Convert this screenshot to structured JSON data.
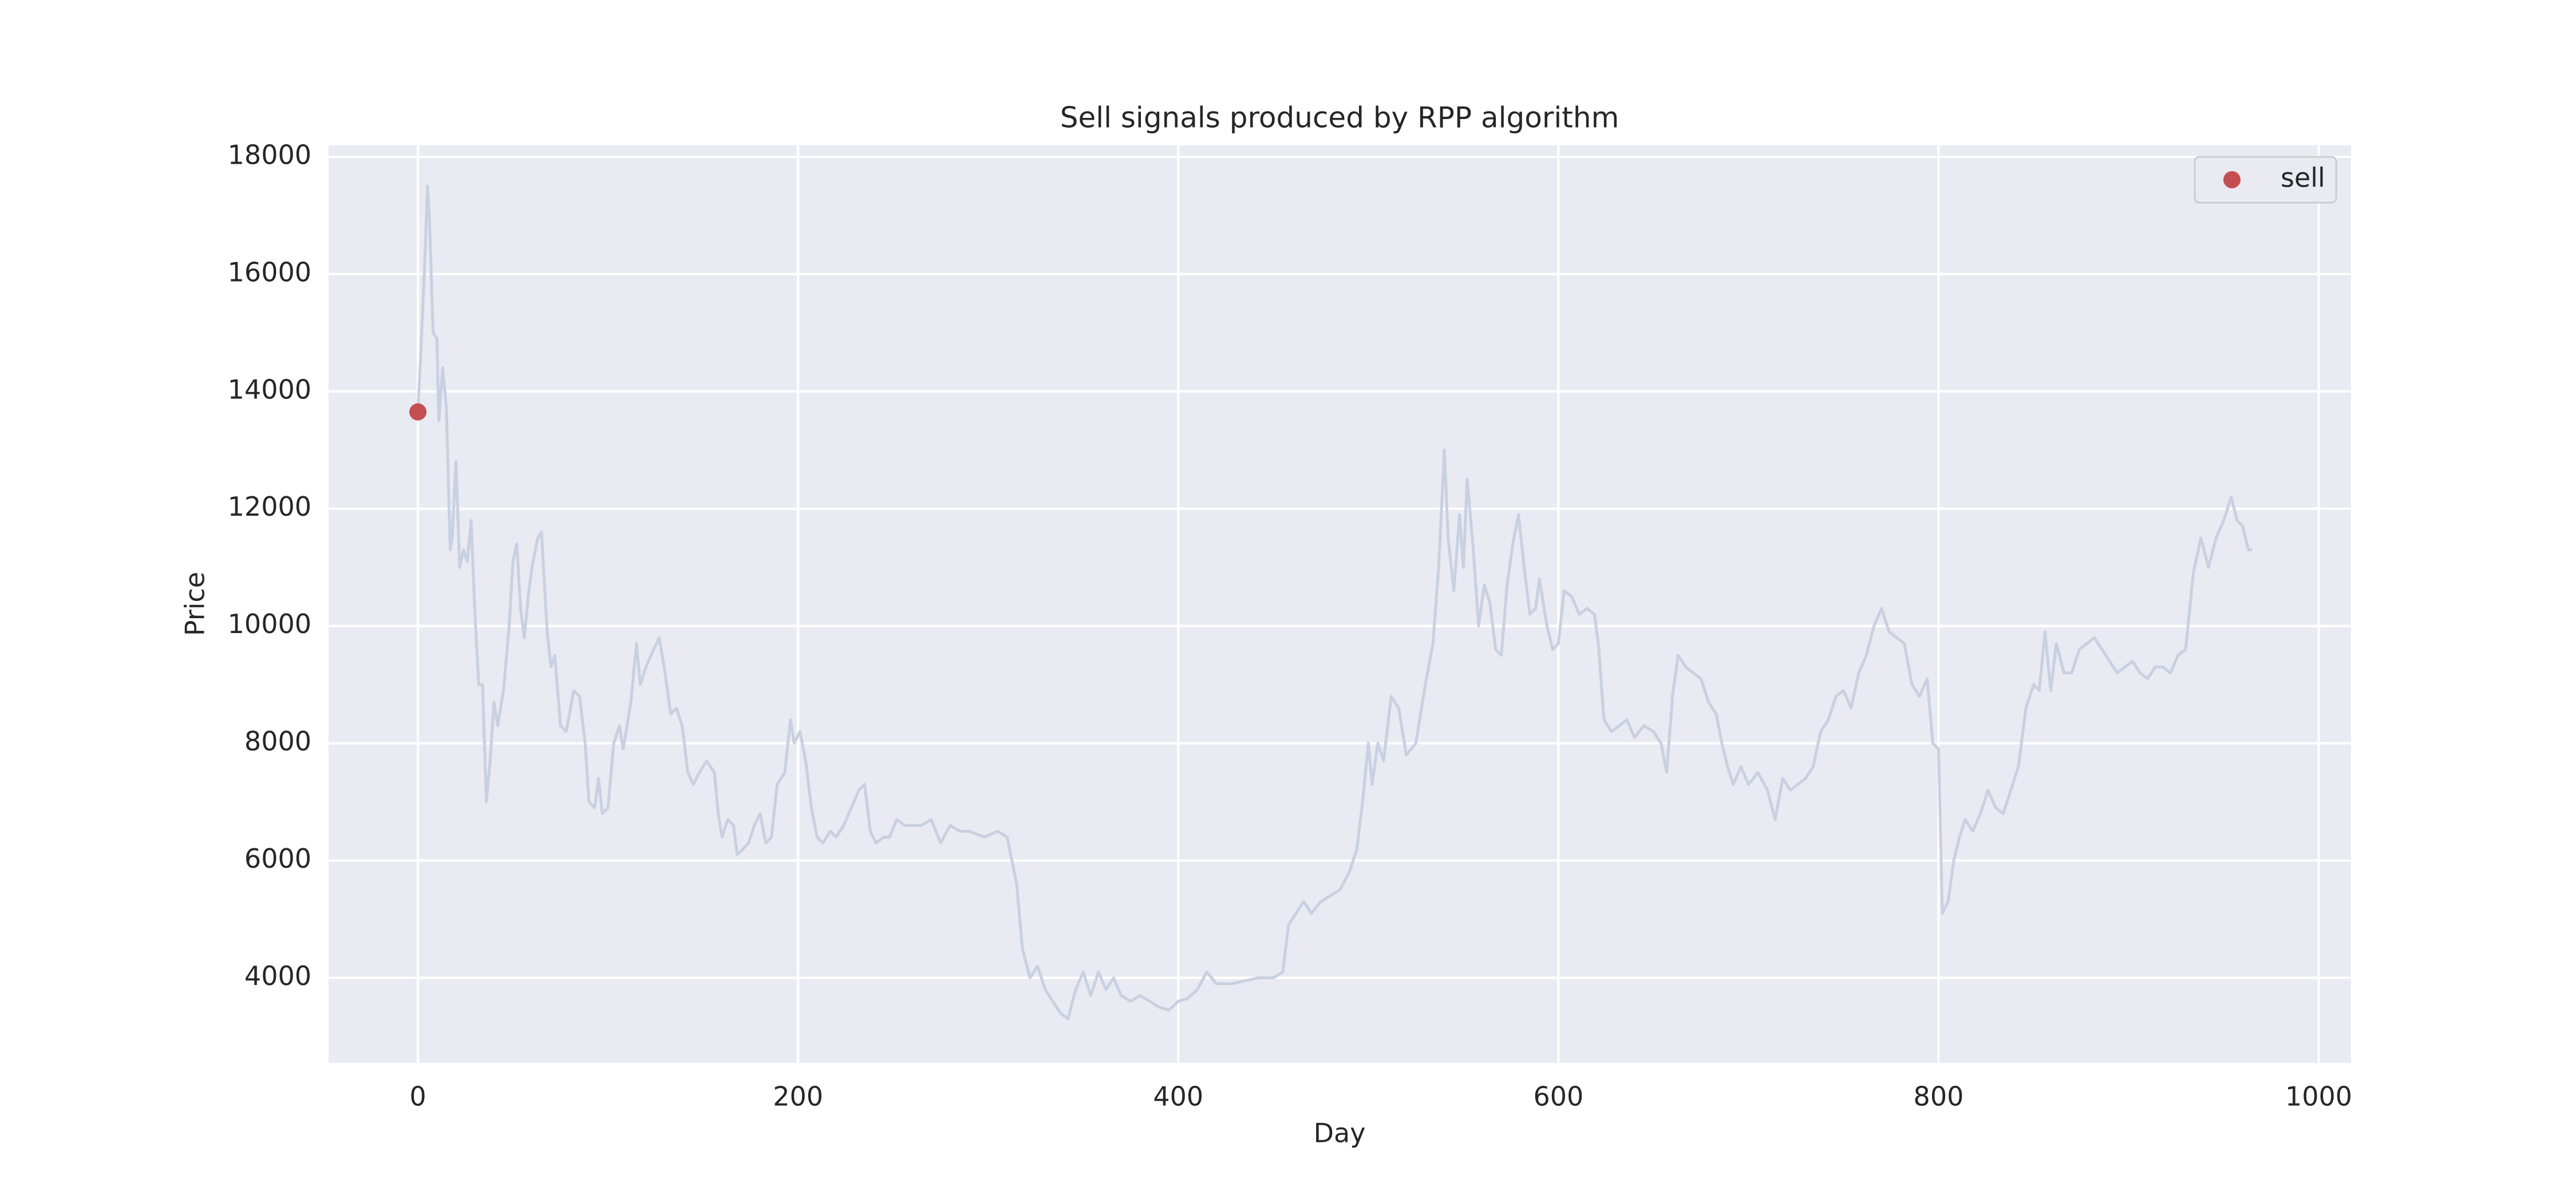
{
  "chart_data": {
    "type": "line",
    "title": "Sell signals produced by RPP algorithm",
    "xlabel": "Day",
    "ylabel": "Price",
    "xlim": [
      -47,
      1017
    ],
    "ylim": [
      2550,
      18195
    ],
    "xticks": [
      0,
      200,
      400,
      600,
      800,
      1000
    ],
    "yticks": [
      4000,
      6000,
      8000,
      10000,
      12000,
      14000,
      16000,
      18000
    ],
    "grid": true,
    "legend": "upper right",
    "series": [
      {
        "type": "line",
        "color": "#c8d0e1",
        "x": [
          0,
          2,
          4,
          5,
          6,
          8,
          10,
          11,
          13,
          15,
          17,
          18,
          20,
          22,
          24,
          26,
          28,
          30,
          32,
          34,
          36,
          38,
          40,
          42,
          45,
          48,
          50,
          52,
          54,
          56,
          58,
          60,
          63,
          65,
          68,
          70,
          72,
          75,
          78,
          82,
          85,
          88,
          90,
          93,
          95,
          97,
          100,
          103,
          106,
          108,
          112,
          115,
          117,
          120,
          124,
          127,
          130,
          133,
          136,
          139,
          142,
          145,
          148,
          152,
          156,
          158,
          160,
          163,
          166,
          168,
          171,
          174,
          177,
          180,
          183,
          186,
          189,
          193,
          196,
          198,
          201,
          204,
          207,
          210,
          213,
          217,
          220,
          224,
          228,
          232,
          235,
          238,
          241,
          245,
          248,
          252,
          256,
          260,
          265,
          270,
          275,
          280,
          285,
          290,
          298,
          305,
          310,
          315,
          318,
          322,
          326,
          330,
          334,
          338,
          342,
          346,
          350,
          354,
          358,
          362,
          366,
          370,
          375,
          380,
          385,
          390,
          395,
          400,
          405,
          410,
          415,
          420,
          428,
          435,
          442,
          450,
          455,
          458,
          462,
          466,
          470,
          475,
          480,
          485,
          490,
          494,
          497,
          500,
          502,
          505,
          508,
          512,
          516,
          520,
          525,
          530,
          534,
          537,
          540,
          542,
          545,
          548,
          550,
          552,
          555,
          558,
          561,
          564,
          567,
          570,
          573,
          576,
          579,
          582,
          585,
          588,
          590,
          594,
          597,
          600,
          603,
          607,
          611,
          615,
          619,
          621,
          624,
          628,
          632,
          636,
          640,
          645,
          650,
          654,
          657,
          660,
          663,
          667,
          671,
          675,
          679,
          683,
          686,
          689,
          692,
          696,
          700,
          705,
          710,
          714,
          718,
          722,
          726,
          730,
          734,
          738,
          742,
          746,
          750,
          754,
          758,
          762,
          766,
          770,
          774,
          778,
          782,
          786,
          790,
          794,
          797,
          800,
          802,
          805,
          808,
          811,
          814,
          818,
          822,
          826,
          830,
          834,
          838,
          842,
          846,
          850,
          853,
          856,
          859,
          862,
          866,
          870,
          874,
          878,
          882,
          886,
          890,
          894,
          898,
          902,
          906,
          910,
          914,
          918,
          922,
          926,
          930,
          934,
          938,
          942,
          946,
          950,
          954,
          957,
          960,
          963,
          965
        ],
        "values": [
          13650,
          15000,
          16500,
          17500,
          17000,
          15000,
          14900,
          13500,
          14400,
          13700,
          11300,
          11500,
          12800,
          11000,
          11300,
          11100,
          11800,
          10200,
          9000,
          9000,
          7000,
          7700,
          8700,
          8300,
          8900,
          10000,
          11100,
          11400,
          10300,
          9800,
          10500,
          11000,
          11500,
          11600,
          9900,
          9300,
          9500,
          8300,
          8200,
          8900,
          8800,
          8000,
          7000,
          6900,
          7400,
          6800,
          6900,
          8000,
          8300,
          7900,
          8700,
          9700,
          9000,
          9300,
          9600,
          9800,
          9200,
          8500,
          8600,
          8300,
          7500,
          7300,
          7500,
          7700,
          7500,
          6800,
          6400,
          6700,
          6600,
          6100,
          6200,
          6300,
          6600,
          6800,
          6300,
          6400,
          7300,
          7500,
          8400,
          8000,
          8200,
          7700,
          6900,
          6400,
          6300,
          6500,
          6400,
          6600,
          6900,
          7200,
          7300,
          6500,
          6300,
          6400,
          6400,
          6700,
          6600,
          6600,
          6600,
          6700,
          6300,
          6600,
          6500,
          6500,
          6400,
          6500,
          6400,
          5600,
          4500,
          4000,
          4200,
          3800,
          3600,
          3400,
          3300,
          3800,
          4100,
          3700,
          4100,
          3800,
          4000,
          3700,
          3600,
          3700,
          3600,
          3500,
          3450,
          3600,
          3650,
          3800,
          4100,
          3900,
          3900,
          3950,
          4000,
          4000,
          4100,
          4900,
          5100,
          5300,
          5100,
          5300,
          5400,
          5500,
          5800,
          6200,
          7000,
          8000,
          7300,
          8000,
          7700,
          8800,
          8600,
          7800,
          8000,
          9000,
          9700,
          11000,
          13000,
          11500,
          10600,
          11900,
          11000,
          12500,
          11400,
          10000,
          10700,
          10400,
          9600,
          9500,
          10700,
          11400,
          11900,
          11000,
          10200,
          10300,
          10800,
          10000,
          9600,
          9700,
          10600,
          10500,
          10200,
          10300,
          10200,
          9700,
          8400,
          8200,
          8300,
          8400,
          8100,
          8300,
          8200,
          8000,
          7500,
          8800,
          9500,
          9300,
          9200,
          9100,
          8700,
          8500,
          8000,
          7600,
          7300,
          7600,
          7300,
          7500,
          7200,
          6700,
          7400,
          7200,
          7300,
          7400,
          7600,
          8200,
          8400,
          8800,
          8900,
          8600,
          9200,
          9500,
          10000,
          10300,
          9900,
          9800,
          9700,
          9000,
          8800,
          9100,
          8000,
          7900,
          5100,
          5300,
          6000,
          6400,
          6700,
          6500,
          6800,
          7200,
          6900,
          6800,
          7200,
          7600,
          8600,
          9000,
          8900,
          9900,
          8900,
          9700,
          9200,
          9200,
          9600,
          9700,
          9800,
          9600,
          9400,
          9200,
          9300,
          9400,
          9200,
          9100,
          9300,
          9300,
          9200,
          9500,
          9600,
          10900,
          11500,
          11000,
          11500,
          11800,
          12200,
          11800,
          11700,
          11300,
          11300
        ]
      },
      {
        "type": "scatter",
        "name": "sell",
        "color": "#c44e52",
        "x": [
          0
        ],
        "values": [
          13650
        ]
      }
    ]
  }
}
